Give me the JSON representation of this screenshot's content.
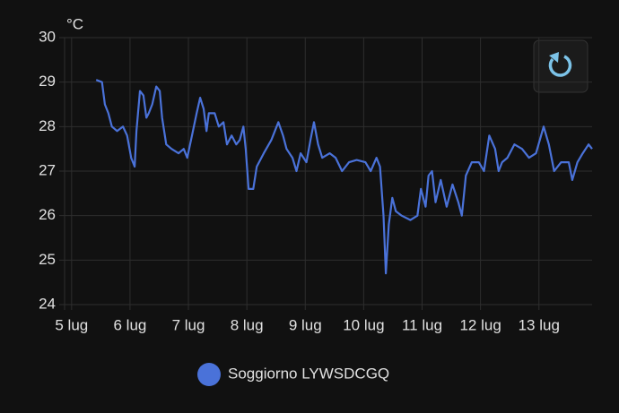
{
  "chart_data": {
    "type": "line",
    "y_unit": "°C",
    "xlim": [
      4.88,
      13.91
    ],
    "xticks": [
      {
        "value": 5,
        "label": "5 lug"
      },
      {
        "value": 6,
        "label": "6 lug"
      },
      {
        "value": 7,
        "label": "7 lug"
      },
      {
        "value": 8,
        "label": "8 lug"
      },
      {
        "value": 9,
        "label": "9 lug"
      },
      {
        "value": 10,
        "label": "10 lug"
      },
      {
        "value": 11,
        "label": "11 lug"
      },
      {
        "value": 12,
        "label": "12 lug"
      },
      {
        "value": 13,
        "label": "13 lug"
      }
    ],
    "ylim": [
      24,
      30
    ],
    "yticks": [
      24,
      25,
      26,
      27,
      28,
      29,
      30
    ],
    "grid": true,
    "legend": "bottom",
    "series": [
      {
        "name": "Soggiorno LYWSDCGQ",
        "color": "#4a72d9",
        "x": [
          5.42,
          5.52,
          5.57,
          5.63,
          5.69,
          5.78,
          5.88,
          5.95,
          6.02,
          6.08,
          6.11,
          6.17,
          6.23,
          6.28,
          6.32,
          6.38,
          6.45,
          6.51,
          6.55,
          6.62,
          6.71,
          6.83,
          6.92,
          6.98,
          7.06,
          7.14,
          7.2,
          7.26,
          7.31,
          7.35,
          7.45,
          7.52,
          7.6,
          7.66,
          7.74,
          7.82,
          7.88,
          7.94,
          7.98,
          8.03,
          8.11,
          8.17,
          8.29,
          8.42,
          8.54,
          8.62,
          8.68,
          8.78,
          8.85,
          8.92,
          9.02,
          9.09,
          9.15,
          9.22,
          9.29,
          9.42,
          9.52,
          9.63,
          9.75,
          9.88,
          10.03,
          10.12,
          10.22,
          10.28,
          10.34,
          10.38,
          10.43,
          10.49,
          10.55,
          10.65,
          10.8,
          10.92,
          10.98,
          11.06,
          11.11,
          11.17,
          11.23,
          11.32,
          11.42,
          11.52,
          11.62,
          11.68,
          11.75,
          11.85,
          11.97,
          12.06,
          12.15,
          12.25,
          12.31,
          12.37,
          12.46,
          12.58,
          12.71,
          12.83,
          12.95,
          13.08,
          13.17,
          13.26,
          13.38,
          13.51,
          13.57,
          13.66,
          13.75,
          13.85,
          13.91
        ],
        "values": [
          29.05,
          29.0,
          28.5,
          28.3,
          28.0,
          27.9,
          28.0,
          27.8,
          27.3,
          27.1,
          27.9,
          28.8,
          28.7,
          28.2,
          28.3,
          28.5,
          28.9,
          28.8,
          28.2,
          27.6,
          27.5,
          27.4,
          27.5,
          27.3,
          27.8,
          28.3,
          28.65,
          28.4,
          27.9,
          28.3,
          28.3,
          28.0,
          28.1,
          27.6,
          27.8,
          27.6,
          27.7,
          28.0,
          27.5,
          26.6,
          26.6,
          27.1,
          27.4,
          27.7,
          28.1,
          27.8,
          27.5,
          27.3,
          27.0,
          27.4,
          27.2,
          27.7,
          28.1,
          27.6,
          27.3,
          27.4,
          27.3,
          27.0,
          27.2,
          27.25,
          27.2,
          27.0,
          27.3,
          27.1,
          26.0,
          24.7,
          25.8,
          26.4,
          26.1,
          26.0,
          25.9,
          26.0,
          26.6,
          26.2,
          26.9,
          27.0,
          26.3,
          26.8,
          26.2,
          26.7,
          26.3,
          26.0,
          26.9,
          27.2,
          27.2,
          27.0,
          27.8,
          27.5,
          27.0,
          27.2,
          27.3,
          27.6,
          27.5,
          27.3,
          27.4,
          28.0,
          27.6,
          27.0,
          27.2,
          27.2,
          26.8,
          27.2,
          27.4,
          27.6,
          27.5
        ]
      }
    ]
  }
}
